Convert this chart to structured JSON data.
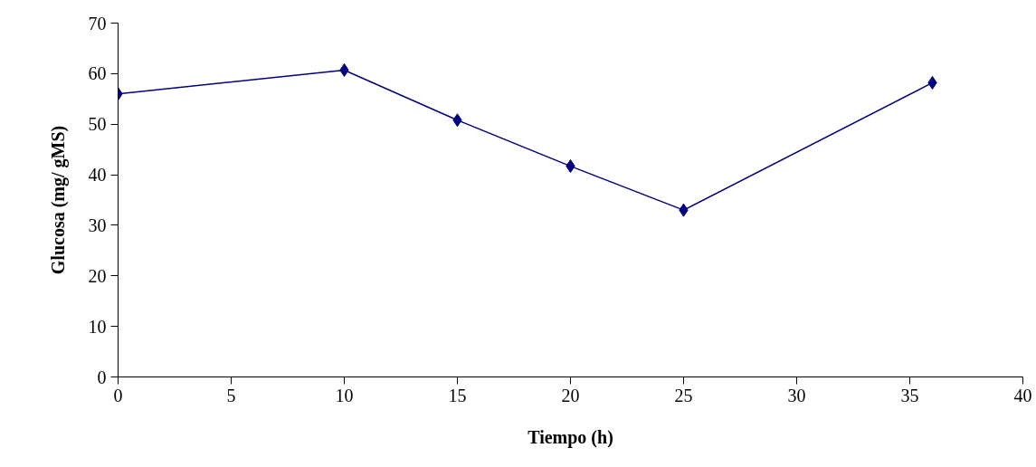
{
  "chart_data": {
    "type": "line",
    "xlabel": "Tiempo (h)",
    "ylabel": "Glucosa (mg/ gMS)",
    "x": [
      0,
      10,
      15,
      20,
      25,
      36
    ],
    "series": [
      {
        "color": "#000080",
        "values": [
          56,
          60.7,
          50.8,
          41.7,
          33,
          58.2
        ]
      }
    ],
    "xlim": [
      0,
      40
    ],
    "xticks": [
      0,
      5,
      10,
      15,
      20,
      25,
      30,
      35,
      40
    ],
    "ylim": [
      0,
      70
    ],
    "yticks": [
      0,
      10,
      20,
      30,
      40,
      50,
      60,
      70
    ],
    "grid": false,
    "marker": "diamond",
    "line_style": "solid"
  }
}
